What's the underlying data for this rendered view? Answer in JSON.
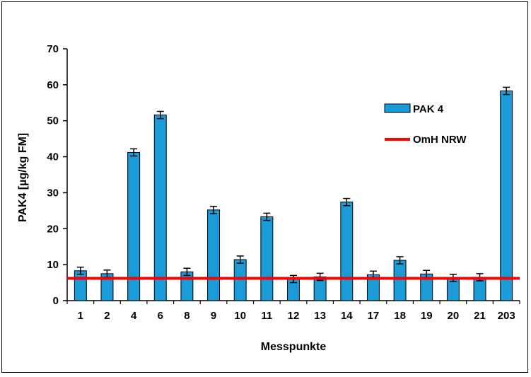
{
  "chart_data": {
    "type": "bar",
    "title": "",
    "xlabel": "Messpunkte",
    "ylabel": "PAK4 [µg/kg FM]",
    "ylim": [
      0,
      70
    ],
    "yticks": [
      0,
      10,
      20,
      30,
      40,
      50,
      60,
      70
    ],
    "categories": [
      "1",
      "2",
      "4",
      "6",
      "8",
      "9",
      "10",
      "11",
      "12",
      "13",
      "14",
      "17",
      "18",
      "19",
      "20",
      "21",
      "203"
    ],
    "series": [
      {
        "name": "PAK 4",
        "values": [
          8.3,
          7.5,
          41.2,
          51.6,
          8.0,
          25.2,
          11.4,
          23.3,
          6.0,
          6.6,
          27.4,
          7.2,
          11.2,
          7.4,
          6.3,
          6.5,
          58.3
        ],
        "errors": [
          1.0,
          1.0,
          1.0,
          1.0,
          1.0,
          1.0,
          1.0,
          1.0,
          1.0,
          1.0,
          1.0,
          1.0,
          1.0,
          1.0,
          1.0,
          1.0,
          1.0
        ],
        "color": "#1b9bd7"
      }
    ],
    "reference_line": {
      "name": "OmH NRW",
      "value": 6.2,
      "color": "#ff0000"
    },
    "legend": [
      {
        "label": "PAK 4",
        "kind": "bar"
      },
      {
        "label": "OmH NRW",
        "kind": "line"
      }
    ],
    "legend_position": "top-right",
    "grid": false
  }
}
